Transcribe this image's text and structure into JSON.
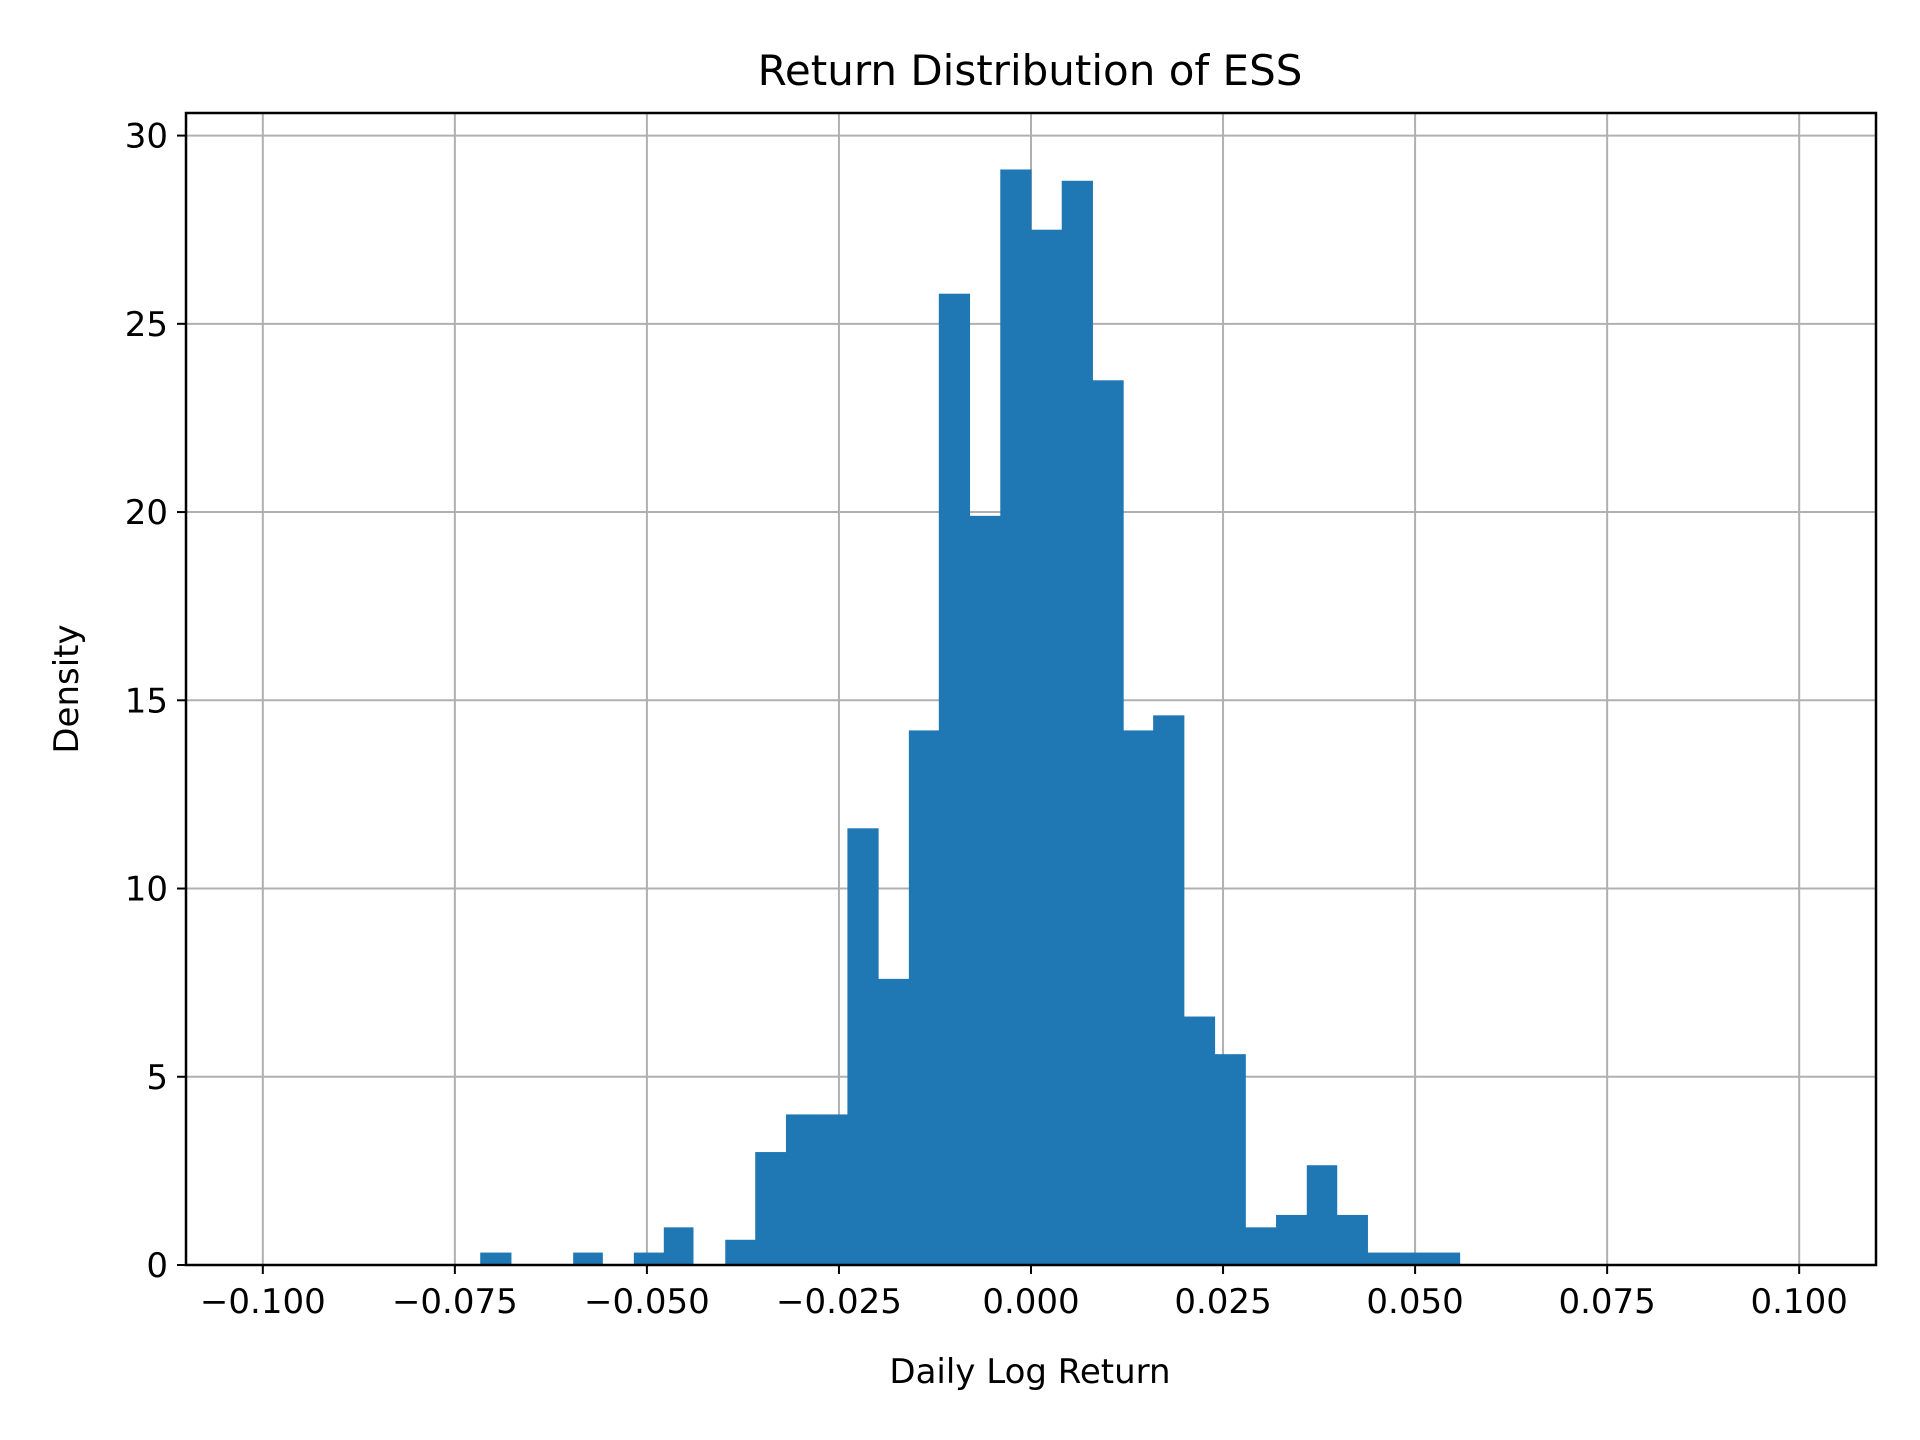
{
  "chart_data": {
    "type": "bar",
    "subtype": "histogram",
    "title": "Return Distribution of ESS",
    "xlabel": "Daily Log Return",
    "ylabel": "Density",
    "xlim": [
      -0.11,
      0.11
    ],
    "ylim": [
      0,
      30.6
    ],
    "grid": true,
    "legend": null,
    "bar_color": "#1f77b4",
    "bin_width": 0.004,
    "xticks": [
      -0.1,
      -0.075,
      -0.05,
      -0.025,
      0.0,
      0.025,
      0.05,
      0.075,
      0.1
    ],
    "xtick_labels": [
      "−0.100",
      "−0.075",
      "−0.050",
      "−0.025",
      "0.000",
      "0.025",
      "0.050",
      "0.075",
      "0.100"
    ],
    "yticks": [
      0,
      5,
      10,
      15,
      20,
      25,
      30
    ],
    "ytick_labels": [
      "0",
      "5",
      "10",
      "15",
      "20",
      "25",
      "30"
    ],
    "bins": [
      {
        "left": -0.0717,
        "right": -0.0677,
        "density": 0.33
      },
      {
        "left": -0.0596,
        "right": -0.0558,
        "density": 0.33
      },
      {
        "left": -0.0517,
        "right": -0.0478,
        "density": 0.33
      },
      {
        "left": -0.0478,
        "right": -0.044,
        "density": 1.0
      },
      {
        "left": -0.0398,
        "right": -0.0359,
        "density": 0.67
      },
      {
        "left": -0.0359,
        "right": -0.0319,
        "density": 3.0
      },
      {
        "left": -0.0319,
        "right": -0.0279,
        "density": 4.0
      },
      {
        "left": -0.0279,
        "right": -0.0239,
        "density": 4.0
      },
      {
        "left": -0.0239,
        "right": -0.0199,
        "density": 11.6
      },
      {
        "left": -0.0199,
        "right": -0.0159,
        "density": 7.6
      },
      {
        "left": -0.0159,
        "right": -0.012,
        "density": 14.2
      },
      {
        "left": -0.012,
        "right": -0.008,
        "density": 25.8
      },
      {
        "left": -0.008,
        "right": -0.004,
        "density": 19.9
      },
      {
        "left": -0.004,
        "right": 0.0,
        "density": 29.1
      },
      {
        "left": 0.0,
        "right": 0.004,
        "density": 27.5
      },
      {
        "left": 0.004,
        "right": 0.008,
        "density": 28.8
      },
      {
        "left": 0.008,
        "right": 0.012,
        "density": 23.5
      },
      {
        "left": 0.012,
        "right": 0.0159,
        "density": 14.2
      },
      {
        "left": 0.0159,
        "right": 0.0199,
        "density": 14.6
      },
      {
        "left": 0.0199,
        "right": 0.0239,
        "density": 6.6
      },
      {
        "left": 0.0239,
        "right": 0.0279,
        "density": 5.6
      },
      {
        "left": 0.0279,
        "right": 0.0319,
        "density": 1.0
      },
      {
        "left": 0.0319,
        "right": 0.0359,
        "density": 1.33
      },
      {
        "left": 0.0359,
        "right": 0.0398,
        "density": 2.65
      },
      {
        "left": 0.0398,
        "right": 0.0438,
        "density": 1.33
      },
      {
        "left": 0.0438,
        "right": 0.0478,
        "density": 0.33
      },
      {
        "left": 0.0478,
        "right": 0.0518,
        "density": 0.33
      },
      {
        "left": 0.0518,
        "right": 0.0558,
        "density": 0.33
      }
    ]
  }
}
